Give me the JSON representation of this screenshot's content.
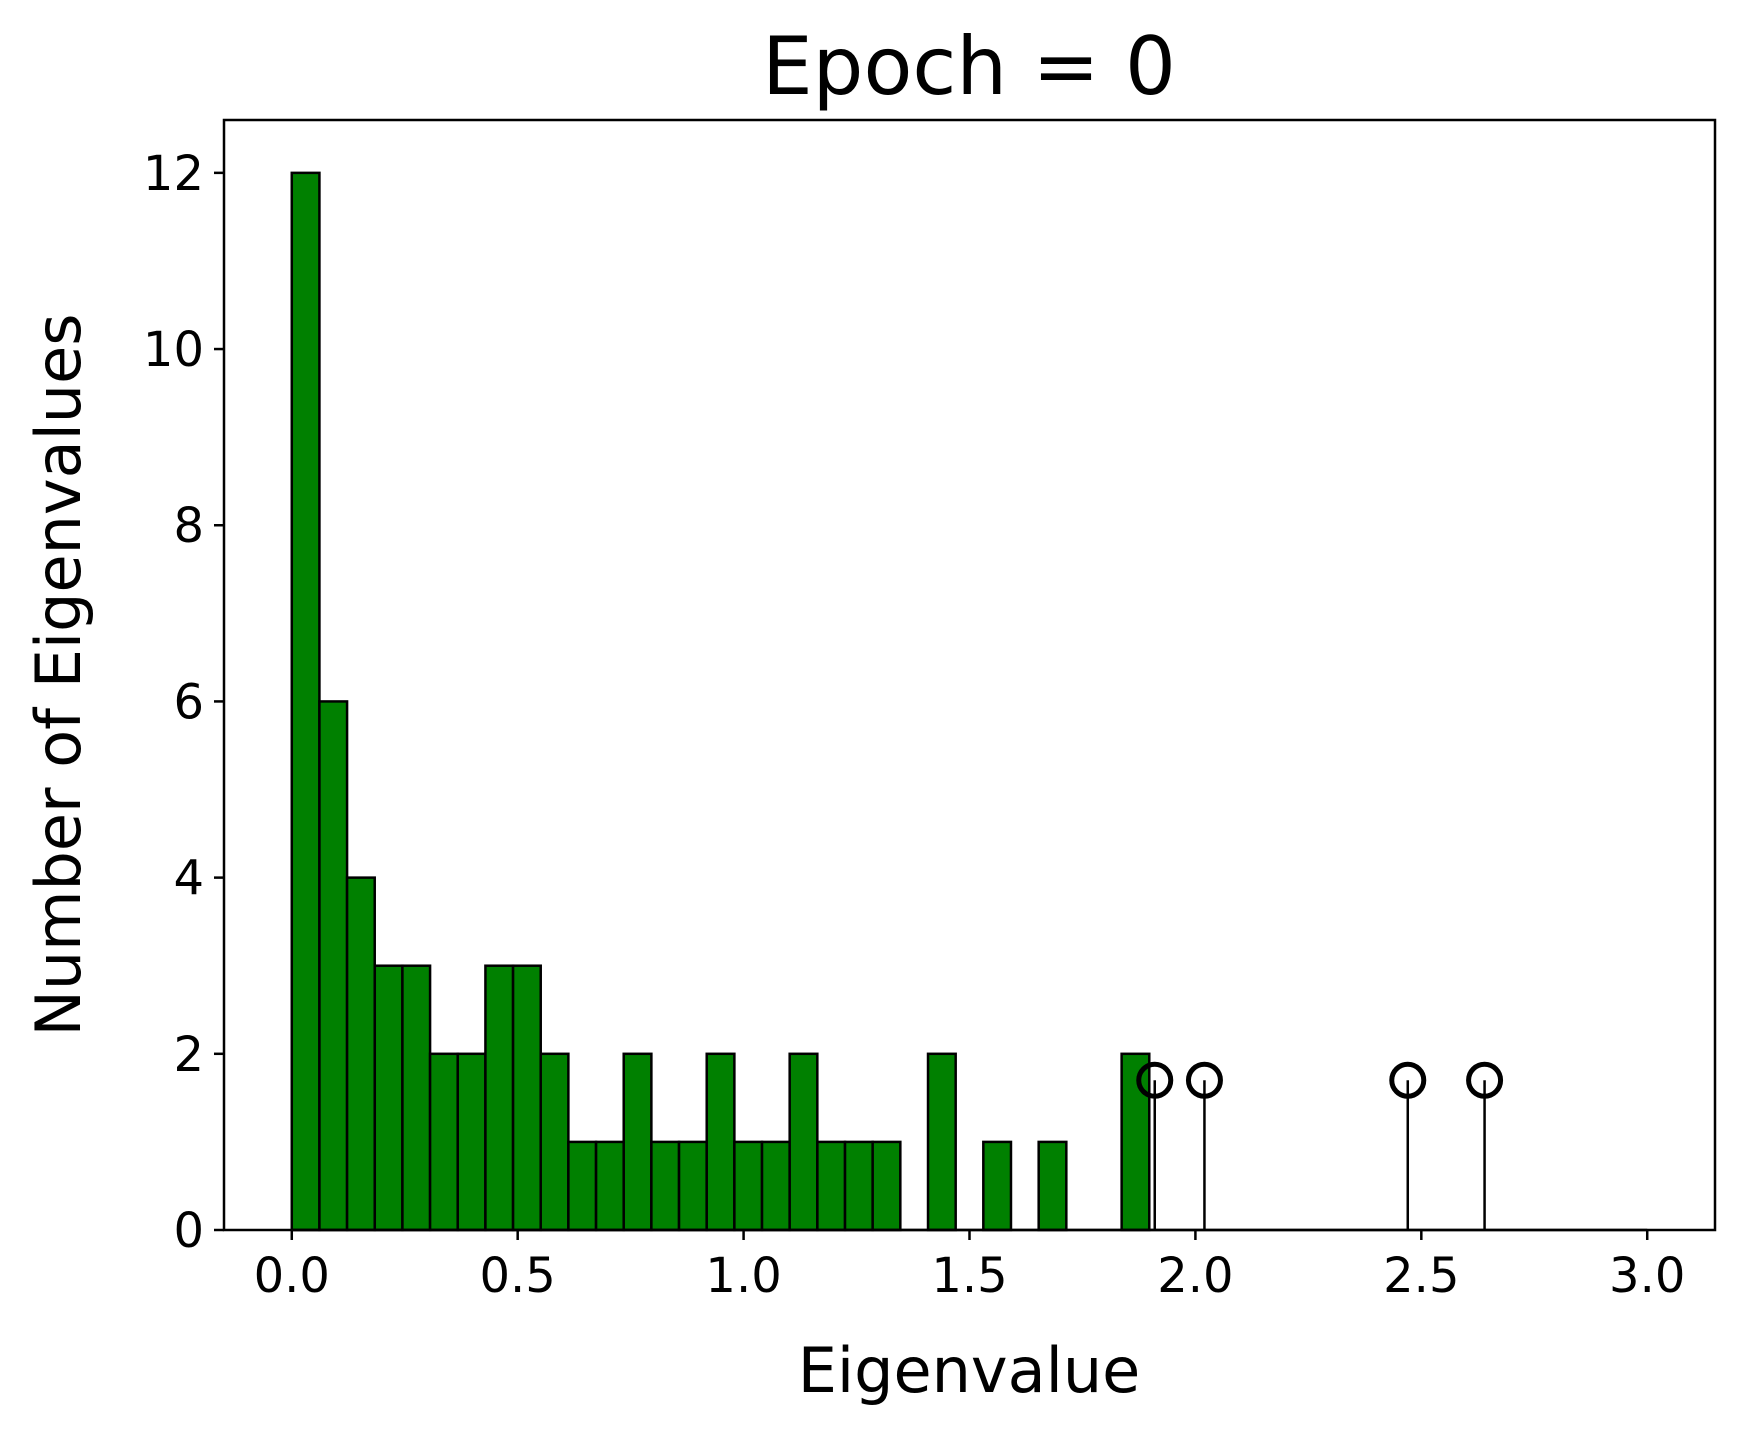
{
  "chart_data": {
    "type": "bar",
    "title": "Epoch = 0",
    "xlabel": "Eigenvalue",
    "ylabel": "Number of Eigenvalues",
    "xlim": [
      -0.15,
      3.15
    ],
    "ylim": [
      0,
      12.6
    ],
    "x_ticks": [
      0.0,
      0.5,
      1.0,
      1.5,
      2.0,
      2.5,
      3.0
    ],
    "x_tick_labels": [
      "0.0",
      "0.5",
      "1.0",
      "1.5",
      "2.0",
      "2.5",
      "3.0"
    ],
    "y_ticks": [
      0,
      2,
      4,
      6,
      8,
      10,
      12
    ],
    "y_tick_labels": [
      "0",
      "2",
      "4",
      "6",
      "8",
      "10",
      "12"
    ],
    "grid": false,
    "bin_width": 0.0612,
    "bin_left_edges": [
      0.0,
      0.0612,
      0.1224,
      0.1837,
      0.2449,
      0.3061,
      0.3673,
      0.4286,
      0.4898,
      0.551,
      0.6122,
      0.6735,
      0.7347,
      0.7959,
      0.8571,
      0.9184,
      0.9796,
      1.0408,
      1.102,
      1.1633,
      1.2245,
      1.2857,
      1.3469,
      1.4082,
      1.4694,
      1.5306,
      1.5918,
      1.6531,
      1.7143,
      1.7755,
      1.8367,
      1.898,
      1.9592,
      2.0204,
      2.0816,
      2.1429,
      2.2041,
      2.2653,
      2.3265,
      2.3878,
      2.449,
      2.5102,
      2.5714,
      2.6327,
      2.6939,
      2.7551,
      2.8163,
      2.8776,
      2.9388
    ],
    "values": [
      12,
      6,
      4,
      3,
      3,
      2,
      2,
      3,
      3,
      2,
      1,
      1,
      2,
      1,
      1,
      2,
      1,
      1,
      2,
      1,
      1,
      1,
      0,
      2,
      0,
      1,
      0,
      1,
      0,
      0,
      2,
      0,
      0,
      0,
      0,
      0,
      0,
      0,
      0,
      0,
      0,
      0,
      0,
      0,
      0,
      0,
      0,
      0,
      0
    ],
    "bar_color": "#008000",
    "edge_color": "#000000",
    "outliers": {
      "type": "stem",
      "x": [
        1.91,
        2.02,
        2.47,
        2.64
      ],
      "y": 1.7,
      "marker": "open-circle",
      "color": "#000000"
    }
  }
}
